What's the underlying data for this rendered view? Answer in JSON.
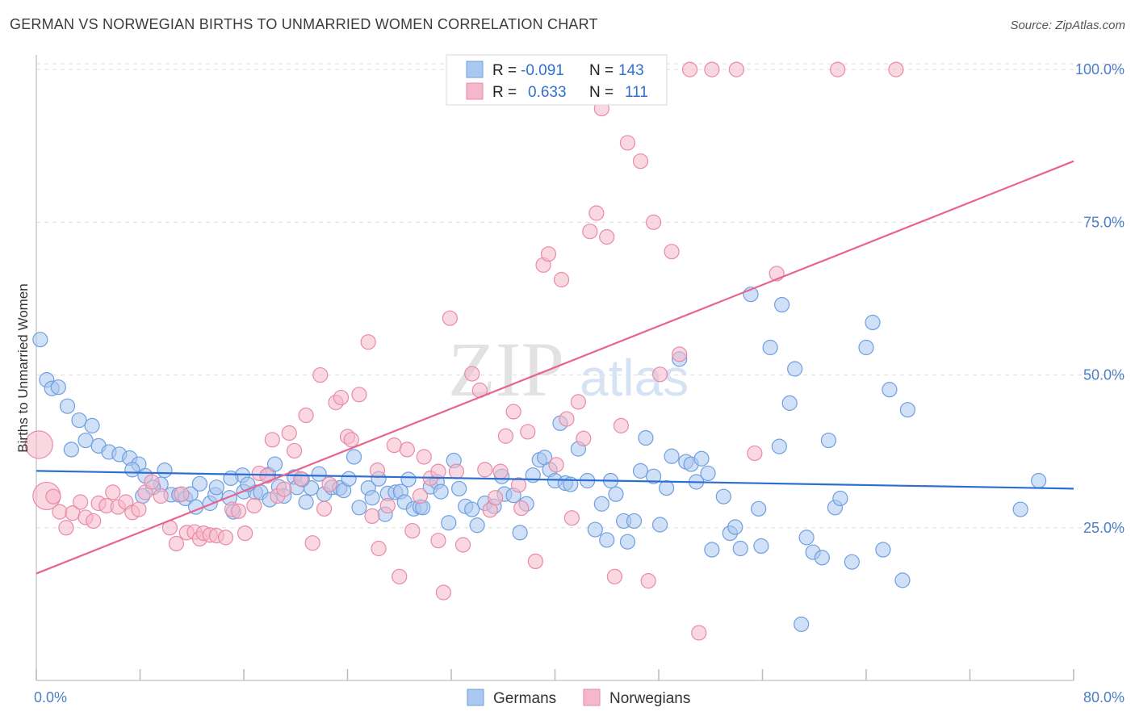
{
  "title": "GERMAN VS NORWEGIAN BIRTHS TO UNMARRIED WOMEN CORRELATION CHART",
  "source": "Source: ZipAtlas.com",
  "watermark": {
    "zip": "ZIP",
    "atlas": "atlas"
  },
  "legend": {
    "r_label": "R =",
    "n_label": "N =",
    "germans": {
      "r": "-0.091",
      "n": "143",
      "color": "#a9c7ef"
    },
    "norwegians": {
      "r": "0.633",
      "n": "111",
      "color": "#f5b8cb"
    }
  },
  "bottom_legend": {
    "germans": "Germans",
    "norwegians": "Norwegians"
  },
  "chart_data": {
    "type": "scatter",
    "title": "GERMAN VS NORWEGIAN BIRTHS TO UNMARRIED WOMEN CORRELATION CHART",
    "xlabel": "",
    "ylabel": "Births to Unmarried Women",
    "xlim": [
      0,
      80
    ],
    "ylim": [
      0,
      102
    ],
    "x_tick_labels": [
      "0.0%",
      "80.0%"
    ],
    "y_ticks": [
      25,
      50,
      75,
      100
    ],
    "y_tick_labels": [
      "25.0%",
      "50.0%",
      "75.0%",
      "100.0%"
    ],
    "grid": true,
    "legend_position": "top-center",
    "series": [
      {
        "name": "Germans",
        "color": "#6f9fe0",
        "fill": "#a9c7ef",
        "trend": {
          "x": [
            0,
            80
          ],
          "y": [
            34.3,
            31.4
          ],
          "color": "#2c6fd1"
        },
        "points": [
          [
            0.3,
            55.8
          ],
          [
            0.8,
            49.2
          ],
          [
            1.2,
            47.8
          ],
          [
            1.7,
            48.0
          ],
          [
            2.4,
            44.9
          ],
          [
            3.3,
            42.6
          ],
          [
            4.3,
            41.7
          ],
          [
            2.7,
            37.8
          ],
          [
            3.8,
            39.3
          ],
          [
            4.8,
            38.4
          ],
          [
            5.6,
            37.4
          ],
          [
            6.4,
            37.0
          ],
          [
            7.2,
            36.4
          ],
          [
            7.9,
            35.4
          ],
          [
            7.4,
            34.5
          ],
          [
            8.4,
            33.5
          ],
          [
            8.2,
            30.2
          ],
          [
            9.6,
            32.1
          ],
          [
            9.9,
            34.4
          ],
          [
            10.4,
            30.4
          ],
          [
            11.0,
            30.4
          ],
          [
            11.5,
            29.8
          ],
          [
            11.9,
            30.5
          ],
          [
            12.3,
            28.4
          ],
          [
            13.4,
            29.0
          ],
          [
            13.8,
            30.4
          ],
          [
            13.9,
            31.6
          ],
          [
            14.9,
            29.9
          ],
          [
            15.2,
            27.6
          ],
          [
            15.9,
            33.6
          ],
          [
            16.0,
            30.9
          ],
          [
            16.9,
            30.8
          ],
          [
            17.3,
            30.8
          ],
          [
            17.9,
            33.7
          ],
          [
            18.4,
            35.4
          ],
          [
            18.7,
            31.7
          ],
          [
            19.1,
            30.2
          ],
          [
            19.9,
            33.3
          ],
          [
            20.1,
            31.6
          ],
          [
            20.8,
            29.2
          ],
          [
            21.2,
            31.5
          ],
          [
            21.8,
            33.8
          ],
          [
            22.2,
            30.5
          ],
          [
            22.8,
            31.6
          ],
          [
            23.4,
            31.5
          ],
          [
            23.7,
            31.1
          ],
          [
            24.1,
            33.0
          ],
          [
            24.5,
            36.6
          ],
          [
            24.9,
            28.3
          ],
          [
            25.6,
            31.5
          ],
          [
            25.9,
            29.9
          ],
          [
            26.4,
            33.0
          ],
          [
            26.9,
            27.2
          ],
          [
            27.1,
            30.6
          ],
          [
            27.7,
            30.8
          ],
          [
            28.1,
            30.9
          ],
          [
            28.4,
            29.2
          ],
          [
            28.7,
            32.9
          ],
          [
            29.1,
            28.1
          ],
          [
            29.6,
            28.4
          ],
          [
            29.8,
            28.3
          ],
          [
            30.4,
            31.7
          ],
          [
            30.9,
            32.5
          ],
          [
            31.2,
            30.9
          ],
          [
            31.8,
            25.8
          ],
          [
            32.2,
            36.0
          ],
          [
            32.6,
            31.4
          ],
          [
            33.1,
            28.5
          ],
          [
            33.6,
            28.0
          ],
          [
            34.0,
            25.4
          ],
          [
            34.6,
            29.0
          ],
          [
            35.3,
            28.5
          ],
          [
            35.9,
            33.4
          ],
          [
            36.1,
            30.5
          ],
          [
            36.8,
            30.3
          ],
          [
            37.3,
            24.2
          ],
          [
            37.8,
            28.9
          ],
          [
            38.3,
            33.6
          ],
          [
            38.8,
            36.1
          ],
          [
            39.2,
            36.5
          ],
          [
            39.6,
            34.5
          ],
          [
            40.0,
            32.7
          ],
          [
            40.4,
            42.1
          ],
          [
            40.8,
            32.3
          ],
          [
            41.2,
            32.1
          ],
          [
            41.8,
            37.9
          ],
          [
            42.5,
            32.7
          ],
          [
            43.1,
            24.7
          ],
          [
            43.6,
            28.9
          ],
          [
            44.0,
            23.0
          ],
          [
            44.3,
            32.7
          ],
          [
            44.7,
            30.5
          ],
          [
            45.3,
            26.1
          ],
          [
            45.6,
            22.7
          ],
          [
            46.1,
            26.1
          ],
          [
            46.6,
            34.3
          ],
          [
            47.0,
            39.7
          ],
          [
            47.6,
            33.4
          ],
          [
            48.1,
            25.5
          ],
          [
            48.6,
            31.5
          ],
          [
            49.0,
            36.7
          ],
          [
            49.6,
            52.6
          ],
          [
            50.1,
            35.8
          ],
          [
            50.5,
            35.4
          ],
          [
            50.9,
            32.5
          ],
          [
            51.3,
            36.3
          ],
          [
            51.8,
            33.9
          ],
          [
            52.1,
            21.4
          ],
          [
            53.0,
            30.1
          ],
          [
            53.5,
            24.1
          ],
          [
            53.9,
            25.1
          ],
          [
            54.3,
            21.6
          ],
          [
            55.1,
            63.2
          ],
          [
            55.7,
            28.1
          ],
          [
            55.9,
            22.0
          ],
          [
            56.6,
            54.5
          ],
          [
            57.3,
            38.3
          ],
          [
            57.5,
            61.5
          ],
          [
            58.1,
            45.4
          ],
          [
            58.5,
            51.0
          ],
          [
            59.0,
            9.2
          ],
          [
            59.4,
            23.4
          ],
          [
            59.9,
            21.0
          ],
          [
            60.6,
            20.1
          ],
          [
            61.1,
            39.3
          ],
          [
            61.6,
            28.3
          ],
          [
            62.0,
            29.8
          ],
          [
            62.9,
            19.4
          ],
          [
            64.0,
            54.5
          ],
          [
            64.5,
            58.6
          ],
          [
            65.3,
            21.4
          ],
          [
            65.8,
            47.6
          ],
          [
            66.8,
            16.4
          ],
          [
            67.2,
            44.3
          ],
          [
            75.9,
            28.0
          ],
          [
            77.3,
            32.7
          ],
          [
            20.5,
            32.9
          ],
          [
            18.0,
            29.6
          ],
          [
            9.0,
            31.6
          ],
          [
            12.6,
            32.2
          ],
          [
            16.3,
            32.1
          ],
          [
            15.0,
            33.1
          ]
        ]
      },
      {
        "name": "Norwegians",
        "color": "#e88aa8",
        "fill": "#f5b8cb",
        "trend": {
          "x": [
            0,
            80
          ],
          "y": [
            17.5,
            85.0
          ],
          "color": "#e8638e"
        },
        "points": [
          [
            0.2,
            38.6,
            "big"
          ],
          [
            0.8,
            30.2,
            "big"
          ],
          [
            1.3,
            30.1
          ],
          [
            1.8,
            27.6
          ],
          [
            2.3,
            25.0
          ],
          [
            2.8,
            27.4
          ],
          [
            3.4,
            29.2
          ],
          [
            3.8,
            26.7
          ],
          [
            4.4,
            26.1
          ],
          [
            4.8,
            29.0
          ],
          [
            5.4,
            28.6
          ],
          [
            5.9,
            30.8
          ],
          [
            6.3,
            28.4
          ],
          [
            6.9,
            29.2
          ],
          [
            7.4,
            27.5
          ],
          [
            7.9,
            28.0
          ],
          [
            8.4,
            30.8
          ],
          [
            8.9,
            32.5
          ],
          [
            9.6,
            30.2
          ],
          [
            10.3,
            25.0
          ],
          [
            10.8,
            22.4
          ],
          [
            11.2,
            30.5
          ],
          [
            11.6,
            24.2
          ],
          [
            12.2,
            24.3
          ],
          [
            12.6,
            23.2
          ],
          [
            12.9,
            24.1
          ],
          [
            13.4,
            23.8
          ],
          [
            13.9,
            23.7
          ],
          [
            14.6,
            23.4
          ],
          [
            15.1,
            28.0
          ],
          [
            15.6,
            27.7
          ],
          [
            16.1,
            24.1
          ],
          [
            16.8,
            28.6
          ],
          [
            17.2,
            33.9
          ],
          [
            17.8,
            33.5
          ],
          [
            18.2,
            39.4
          ],
          [
            18.6,
            30.2
          ],
          [
            19.1,
            31.3
          ],
          [
            19.5,
            40.5
          ],
          [
            19.9,
            37.6
          ],
          [
            20.4,
            33.0
          ],
          [
            20.8,
            43.4
          ],
          [
            21.3,
            22.5
          ],
          [
            21.9,
            50.0
          ],
          [
            22.2,
            28.1
          ],
          [
            22.6,
            32.1
          ],
          [
            23.1,
            45.5
          ],
          [
            23.5,
            46.3
          ],
          [
            24.0,
            39.9
          ],
          [
            24.3,
            39.4
          ],
          [
            24.9,
            46.8
          ],
          [
            25.6,
            55.4
          ],
          [
            25.9,
            26.9
          ],
          [
            26.4,
            21.6
          ],
          [
            27.1,
            28.6
          ],
          [
            27.6,
            38.5
          ],
          [
            28.0,
            17.0
          ],
          [
            28.6,
            37.8
          ],
          [
            29.0,
            24.5
          ],
          [
            29.6,
            30.2
          ],
          [
            29.9,
            36.6
          ],
          [
            30.4,
            33.1
          ],
          [
            31.0,
            22.9
          ],
          [
            31.4,
            14.4
          ],
          [
            31.9,
            59.3
          ],
          [
            32.4,
            34.2
          ],
          [
            32.9,
            22.2
          ],
          [
            33.6,
            50.2
          ],
          [
            34.2,
            47.5
          ],
          [
            34.6,
            34.5
          ],
          [
            35.0,
            27.9
          ],
          [
            35.4,
            29.9
          ],
          [
            35.8,
            34.2
          ],
          [
            36.2,
            40.0
          ],
          [
            36.8,
            44.0
          ],
          [
            37.4,
            28.2
          ],
          [
            37.9,
            40.7
          ],
          [
            38.5,
            19.5
          ],
          [
            39.1,
            68.0
          ],
          [
            39.5,
            69.8
          ],
          [
            40.1,
            35.3
          ],
          [
            40.5,
            65.6
          ],
          [
            40.9,
            42.8
          ],
          [
            41.3,
            26.6
          ],
          [
            41.8,
            45.6
          ],
          [
            42.2,
            39.6
          ],
          [
            42.7,
            73.5
          ],
          [
            43.2,
            76.5
          ],
          [
            43.6,
            93.6
          ],
          [
            44.0,
            72.6
          ],
          [
            44.6,
            17.0
          ],
          [
            45.1,
            41.7
          ],
          [
            45.6,
            88.0
          ],
          [
            46.1,
            100.0
          ],
          [
            46.6,
            85.0
          ],
          [
            47.2,
            16.3
          ],
          [
            47.6,
            75.0
          ],
          [
            48.1,
            50.1
          ],
          [
            49.0,
            70.2
          ],
          [
            49.6,
            53.4
          ],
          [
            50.4,
            100.0
          ],
          [
            51.1,
            7.8
          ],
          [
            52.1,
            100.0
          ],
          [
            54.0,
            100.0
          ],
          [
            55.4,
            37.2
          ],
          [
            57.1,
            66.6
          ],
          [
            61.8,
            100.0
          ],
          [
            66.3,
            100.0
          ],
          [
            31.0,
            34.2
          ],
          [
            26.3,
            34.4
          ],
          [
            37.2,
            32.0
          ]
        ]
      }
    ]
  }
}
